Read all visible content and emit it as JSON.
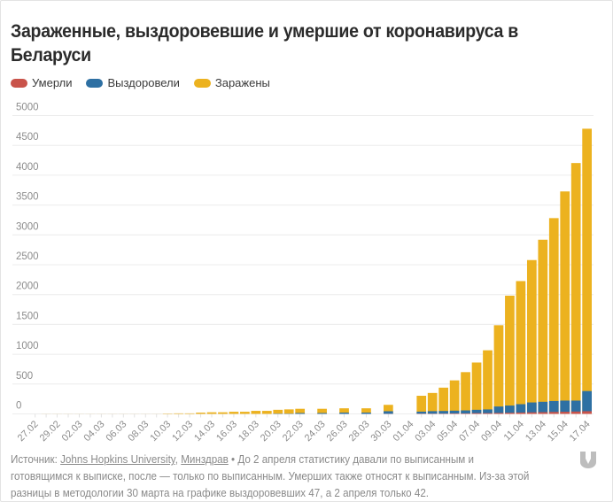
{
  "title": "Зараженные, выздоровевшие и умершие от коронавируса в Беларуси",
  "legend": [
    {
      "label": "Умерли",
      "color": "#c9534a"
    },
    {
      "label": "Выздоровели",
      "color": "#2e70a3"
    },
    {
      "label": "Заражены",
      "color": "#ecb21f"
    }
  ],
  "footer": {
    "source_label": "Источник:",
    "link1": "Johns Hopkins University",
    "separator": ",",
    "link2": "Минздрав",
    "note": " • До 2 апреля статистику давали по выписанным и готовящимся к выписке, после — только по выписанным. Умерших также относят к выписанным. Из-за этой разницы в методологии 30 марта на графике выздоровевших 47, а 2 апреля только 42."
  },
  "logo": "download-arrow-icon",
  "chart_data": {
    "type": "bar",
    "stacked": true,
    "title": "Зараженные, выздоровевшие и умершие от коронавируса в Беларуси",
    "xlabel": "",
    "ylabel": "",
    "ylim": [
      0,
      5000
    ],
    "yticks": [
      0,
      500,
      1000,
      1500,
      2000,
      2500,
      3000,
      3500,
      4000,
      4500,
      5000
    ],
    "grid": true,
    "legend_position": "top-left",
    "xtick_labels": [
      "27.02",
      "29.02",
      "02.03",
      "04.03",
      "06.03",
      "08.03",
      "10.03",
      "12.03",
      "14.03",
      "16.03",
      "18.03",
      "20.03",
      "22.03",
      "24.03",
      "26.03",
      "28.03",
      "30.03",
      "01.04",
      "03.04",
      "05.04",
      "07.04",
      "09.04",
      "11.04",
      "13.04",
      "15.04",
      "17.04"
    ],
    "categories": [
      "27.02",
      "28.02",
      "29.02",
      "01.03",
      "02.03",
      "03.03",
      "04.03",
      "05.03",
      "06.03",
      "07.03",
      "08.03",
      "09.03",
      "10.03",
      "11.03",
      "12.03",
      "13.03",
      "14.03",
      "15.03",
      "16.03",
      "17.03",
      "18.03",
      "19.03",
      "20.03",
      "21.03",
      "22.03",
      "23.03",
      "24.03",
      "25.03",
      "26.03",
      "27.03",
      "28.03",
      "29.03",
      "30.03",
      "31.03",
      "01.04",
      "02.04",
      "03.04",
      "04.04",
      "05.04",
      "06.04",
      "07.04",
      "08.04",
      "09.04",
      "10.04",
      "11.04",
      "12.04",
      "13.04",
      "14.04",
      "15.04",
      "16.04",
      "17.04"
    ],
    "series": [
      {
        "name": "Умерли",
        "color": "#c9534a",
        "values": [
          0,
          0,
          0,
          0,
          0,
          0,
          0,
          0,
          0,
          0,
          0,
          0,
          0,
          0,
          0,
          0,
          0,
          0,
          0,
          0,
          0,
          0,
          0,
          0,
          0,
          null,
          0,
          null,
          0,
          null,
          0,
          null,
          2,
          null,
          null,
          4,
          4,
          5,
          8,
          8,
          13,
          13,
          16,
          19,
          23,
          26,
          29,
          33,
          36,
          40,
          45
        ]
      },
      {
        "name": "Выздоровели",
        "color": "#2e70a3",
        "values": [
          0,
          0,
          0,
          0,
          0,
          0,
          0,
          0,
          0,
          0,
          0,
          0,
          0,
          0,
          0,
          0,
          0,
          0,
          0,
          0,
          0,
          0,
          5,
          5,
          15,
          null,
          15,
          null,
          22,
          null,
          22,
          null,
          45,
          null,
          null,
          38,
          46,
          49,
          54,
          59,
          69,
          75,
          124,
          140,
          163,
          192,
          203,
          216,
          223,
          223,
          383
        ]
      },
      {
        "name": "Заражены",
        "color": "#ecb21f",
        "values": [
          0,
          1,
          1,
          1,
          1,
          1,
          1,
          1,
          1,
          1,
          1,
          1,
          6,
          9,
          9,
          21,
          27,
          27,
          36,
          36,
          51,
          51,
          69,
          76,
          86,
          null,
          86,
          null,
          94,
          null,
          94,
          null,
          152,
          null,
          null,
          304,
          351,
          440,
          562,
          700,
          861,
          1066,
          1486,
          1981,
          2226,
          2578,
          2919,
          3281,
          3728,
          4204,
          4779
        ]
      }
    ]
  }
}
